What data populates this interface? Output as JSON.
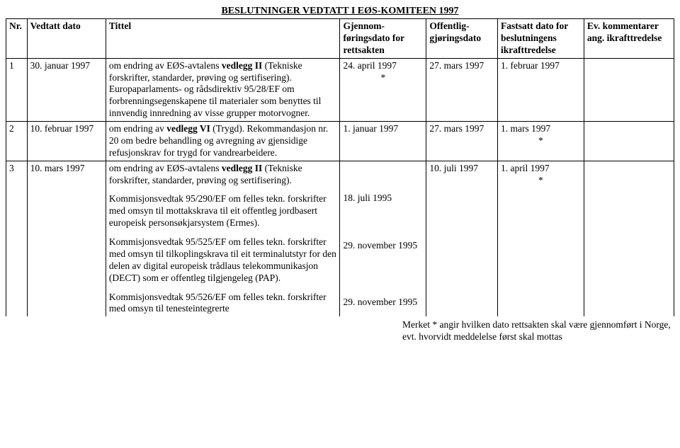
{
  "title": "BESLUTNINGER VEDTATT I EØS-KOMITEEN 1997",
  "columns": {
    "nr": "Nr.",
    "vedtatt": "Vedtatt dato",
    "tittel": "Tittel",
    "gjennom": "Gjennom-føringsdato for rettsakten",
    "offentlig": "Offentlig-gjøringsdato",
    "fastsatt": "Fastsatt dato for beslutningens ikrafttredelse",
    "kommentar": "Ev. kommentarer ang. ikrafttredelse"
  },
  "rows": [
    {
      "nr": "1",
      "vedtatt": "30. januar 1997",
      "tittel_html": "om endring av EØS-avtalens <b>vedlegg II</b> (Tekniske forskrifter, standarder, prøving og sertifisering). Europaparlaments- og rådsdirektiv 95/28/EF om forbrenningsegenskapene til materialer som benyttes til innvendig innredning av visse grupper motorvogner.",
      "gjennom": "24. april 1997",
      "gjennom_mark": "*",
      "offentlig": "27. mars 1997",
      "fastsatt": "1. februar 1997",
      "fastsatt_mark": "",
      "kommentar": ""
    },
    {
      "nr": "2",
      "vedtatt": "10. februar 1997",
      "tittel_html": "om endring av <b>vedlegg VI</b> (Trygd). Rekommandasjon nr. 20 om bedre behandling og avregning av gjensidige refusjonskrav for trygd for vandrearbeidere.",
      "gjennom": "1. januar 1997",
      "gjennom_mark": "",
      "offentlig": "27. mars 1997",
      "fastsatt": "1. mars 1997",
      "fastsatt_mark": "*",
      "kommentar": ""
    },
    {
      "nr": "3",
      "vedtatt": "10. mars 1997",
      "tittel_html": "om endring av EØS-avtalens <b>vedlegg II</b> (Tekniske forskrifter, standarder, prøving og sertifisering).<div class=\"sub\">Kommisjonsvedtak 95/290/EF om felles tekn. forskrifter med omsyn til mottakskrava til eit offentleg jordbasert europeisk personsøkjarsystem (Ermes).</div><div class=\"sub\">Kommisjonsvedtak 95/525/EF om felles tekn. forskrifter med omsyn til tilkoplingskrava til eit terminalutstyr for den delen av digital europeisk trådlaus telekommunikasjon (DECT) som er offentleg tilgjengeleg (PAP).</div><div class=\"sub\">Kommisjonsvedtak 95/526/EF om felles tekn. forskrifter med omsyn til tenesteintegrerte</div>",
      "gjennom": "",
      "gjennom_sub": [
        "18. juli 1995",
        "29. november 1995",
        "29. november 1995"
      ],
      "offentlig": "10. juli 1997",
      "fastsatt": "1. april 1997",
      "fastsatt_mark": "*",
      "kommentar": ""
    }
  ],
  "footnote": "Merket * angir hvilken dato rettsakten skal være gjennomført i Norge, evt. hvorvidt meddelelse først skal mottas"
}
